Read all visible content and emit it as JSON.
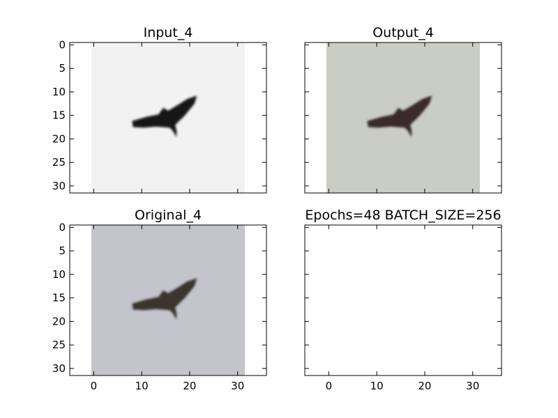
{
  "figure": {
    "background": "#ffffff"
  },
  "chart_data": [
    {
      "type": "image",
      "title": "Input_4",
      "grid": false,
      "xlim": [
        -5,
        36
      ],
      "ylim": [
        31.5,
        -0.5
      ],
      "xticks": [
        0,
        10,
        20,
        30
      ],
      "yticks": [
        0,
        5,
        10,
        15,
        20,
        25,
        30
      ],
      "show_xtick_labels": false,
      "show_ytick_labels": true,
      "image": {
        "extent": [
          -0.5,
          31.5,
          31.5,
          -0.5
        ],
        "background": "#f2f2f2",
        "subject": "bird",
        "subject_color": "#141414",
        "palette": "grayscale"
      }
    },
    {
      "type": "image",
      "title": "Output_4",
      "grid": false,
      "xlim": [
        -5,
        36
      ],
      "ylim": [
        31.5,
        -0.5
      ],
      "xticks": [
        0,
        10,
        20,
        30
      ],
      "yticks": [
        0,
        5,
        10,
        15,
        20,
        25,
        30
      ],
      "show_xtick_labels": false,
      "show_ytick_labels": false,
      "image": {
        "extent": [
          -0.5,
          31.5,
          31.5,
          -0.5
        ],
        "background": "#c9cdc3",
        "subject": "bird",
        "subject_color": "#3a2c2a",
        "palette": "color"
      }
    },
    {
      "type": "image",
      "title": "Original_4",
      "grid": false,
      "xlim": [
        -5,
        36
      ],
      "ylim": [
        31.5,
        -0.5
      ],
      "xticks": [
        0,
        10,
        20,
        30
      ],
      "yticks": [
        0,
        5,
        10,
        15,
        20,
        25,
        30
      ],
      "show_xtick_labels": true,
      "show_ytick_labels": true,
      "image": {
        "extent": [
          -0.5,
          31.5,
          31.5,
          -0.5
        ],
        "background": "#c3c4cc",
        "subject": "bird",
        "subject_color": "#3b352d",
        "palette": "color"
      }
    },
    {
      "type": "empty",
      "title": "Epochs=48 BATCH_SIZE=256",
      "grid": false,
      "xlim": [
        -5,
        36
      ],
      "ylim": [
        31.5,
        -0.5
      ],
      "xticks": [
        0,
        10,
        20,
        30
      ],
      "yticks": [
        0,
        5,
        10,
        15,
        20,
        25,
        30
      ],
      "show_xtick_labels": true,
      "show_ytick_labels": false
    }
  ]
}
